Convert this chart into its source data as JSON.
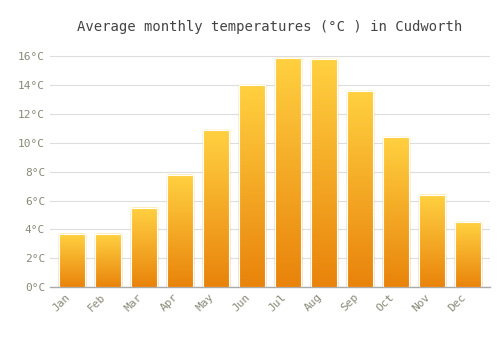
{
  "months": [
    "Jan",
    "Feb",
    "Mar",
    "Apr",
    "May",
    "Jun",
    "Jul",
    "Aug",
    "Sep",
    "Oct",
    "Nov",
    "Dec"
  ],
  "temperatures": [
    3.7,
    3.7,
    5.5,
    7.8,
    10.9,
    14.0,
    15.9,
    15.8,
    13.6,
    10.4,
    6.4,
    4.5
  ],
  "title": "Average monthly temperatures (°C ) in Cudworth",
  "bar_color_bottom": "#E8820A",
  "bar_color_top": "#FFD040",
  "bar_edge_color": "#FFFFFF",
  "background_color": "#FFFFFF",
  "grid_color": "#DDDDDD",
  "ylim": [
    0,
    17
  ],
  "yticks": [
    0,
    2,
    4,
    6,
    8,
    10,
    12,
    14,
    16
  ],
  "ytick_labels": [
    "0°C",
    "2°C",
    "4°C",
    "6°C",
    "8°C",
    "10°C",
    "12°C",
    "14°C",
    "16°C"
  ],
  "title_fontsize": 10,
  "tick_fontsize": 8,
  "tick_font_color": "#888877",
  "title_color": "#444444"
}
